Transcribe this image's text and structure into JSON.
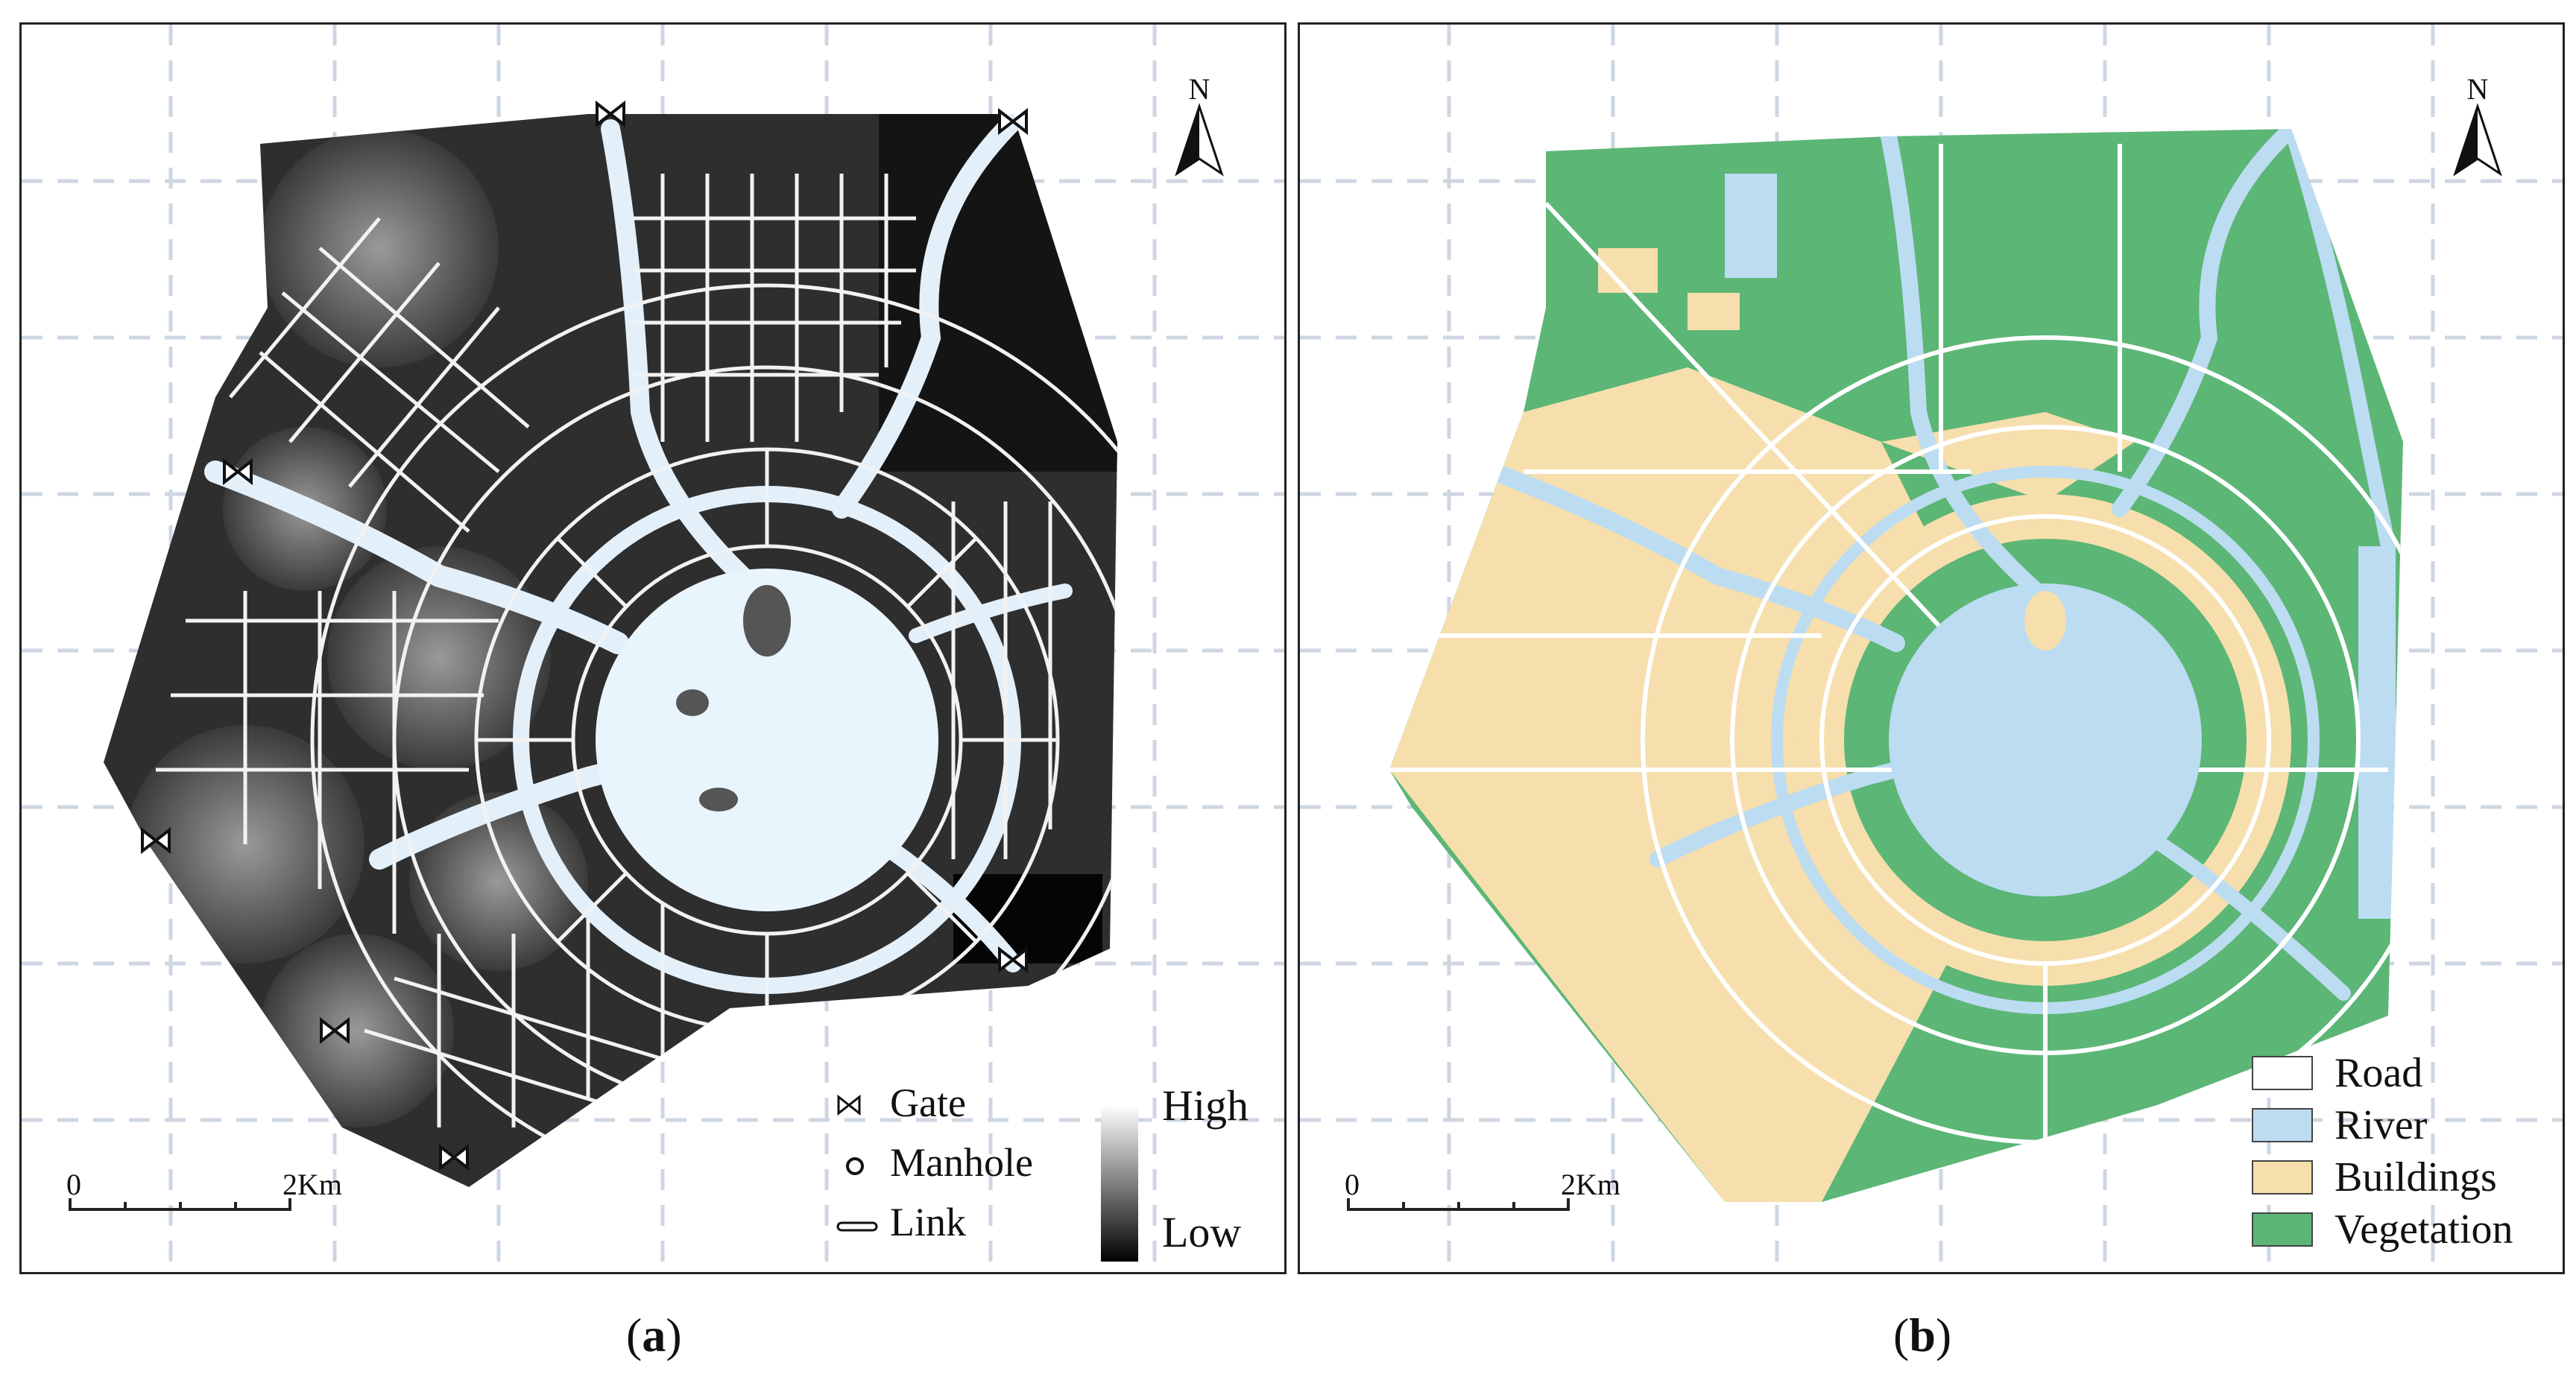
{
  "panels": {
    "a": {
      "caption_letter": "a",
      "legend": {
        "gate": "Gate",
        "manhole": "Manhole",
        "link": "Link"
      },
      "ramp": {
        "high": "High",
        "low": "Low"
      },
      "scale": {
        "start": "0",
        "end": "2Km"
      },
      "north": "N"
    },
    "b": {
      "caption_letter": "b",
      "legend": {
        "road": "Road",
        "river": "River",
        "buildings": "Buildings",
        "vegetation": "Vegetation"
      },
      "scale": {
        "start": "0",
        "end": "2Km"
      },
      "north": "N"
    }
  },
  "colors": {
    "road": "#ffffff",
    "river": "#bcdcf2",
    "buildings": "#f6dfad",
    "vegetation": "#5cb676",
    "terrain_dark": "#2b2b2b",
    "grid": "#cdd6e2"
  }
}
